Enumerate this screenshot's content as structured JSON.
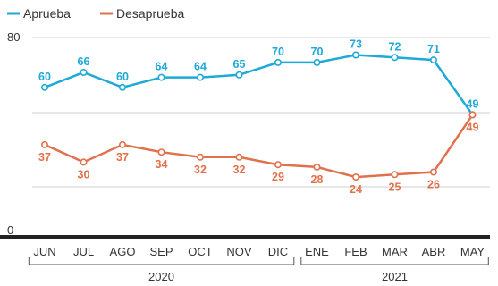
{
  "chart_data": {
    "type": "line",
    "categories": [
      "JUN",
      "JUL",
      "AGO",
      "SEP",
      "OCT",
      "NOV",
      "DIC",
      "ENE",
      "FEB",
      "MAR",
      "ABR",
      "MAY"
    ],
    "series": [
      {
        "name": "Aprueba",
        "color": "#1fa9d6",
        "values": [
          60,
          66,
          60,
          64,
          64,
          65,
          70,
          70,
          73,
          72,
          71,
          49
        ]
      },
      {
        "name": "Desaprueba",
        "color": "#e0714d",
        "values": [
          37,
          30,
          37,
          34,
          32,
          32,
          29,
          28,
          24,
          25,
          26,
          49
        ]
      }
    ],
    "y_ticks": [
      "0",
      "80"
    ],
    "ylim": [
      0,
      80
    ],
    "year_groups": [
      {
        "label": "2020",
        "from": "JUN",
        "to": "DIC"
      },
      {
        "label": "2021",
        "from": "ENE",
        "to": "MAY"
      }
    ],
    "grid": true,
    "legend_position": "top-left"
  }
}
